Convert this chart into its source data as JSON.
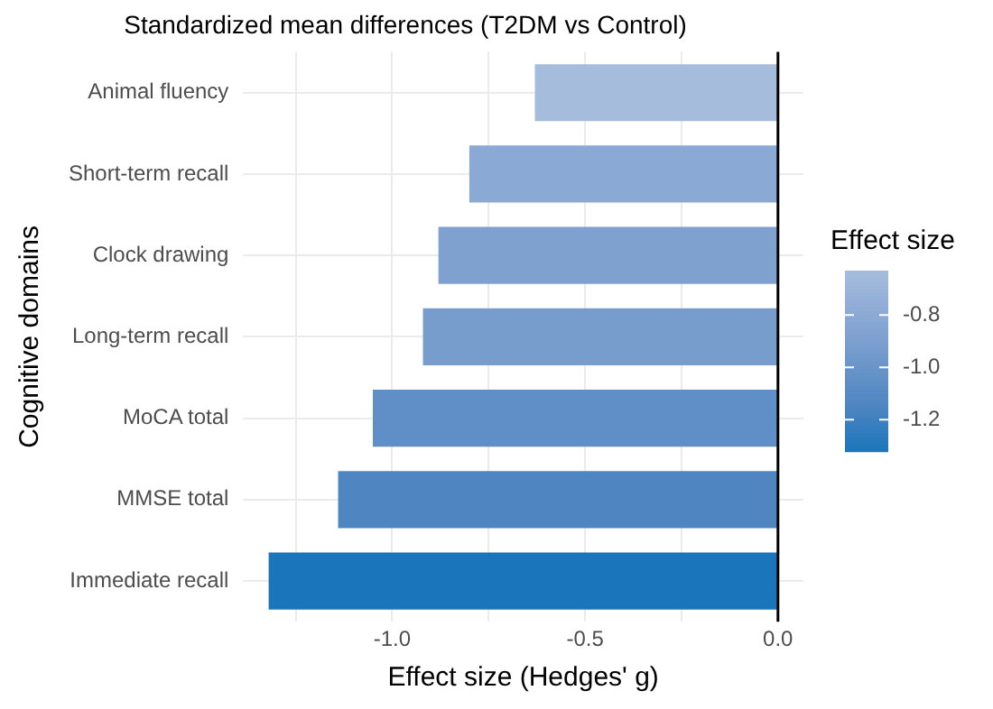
{
  "chart_data": {
    "type": "bar",
    "orientation": "horizontal",
    "title": "Standardized mean differences (T2DM vs Control)",
    "xlabel": "Effect size (Hedges' g)",
    "ylabel": "Cognitive domains",
    "categories": [
      "Animal fluency",
      "Short-term recall",
      "Clock drawing",
      "Long-term recall",
      "MoCA total",
      "MMSE total",
      "Immediate recall"
    ],
    "values": [
      -0.63,
      -0.8,
      -0.88,
      -0.92,
      -1.05,
      -1.14,
      -1.32
    ],
    "colors": [
      "#a6bcdc",
      "#8aa9d5",
      "#7fa1d0",
      "#779dcd",
      "#5f8fc6",
      "#4f86c2",
      "#1a75bb"
    ],
    "xlim": [
      -1.386,
      0.066
    ],
    "xticks": [
      {
        "value": -1.25,
        "label": null
      },
      {
        "value": -1,
        "label": "-1.0"
      },
      {
        "value": -0.75,
        "label": null
      },
      -0.5,
      {
        "value": -0.25,
        "label": null
      },
      {
        "value": 0,
        "label": "0.0"
      }
    ],
    "grid": true,
    "ref_lines": [
      {
        "axis": "x",
        "value": 0,
        "color": "#000000"
      }
    ],
    "clabel": "Effect size",
    "clim": [
      -1.32,
      -0.63
    ],
    "cticks": [
      -0.8,
      {
        "value": -1,
        "label": "-1.0"
      },
      -1.2
    ]
  }
}
